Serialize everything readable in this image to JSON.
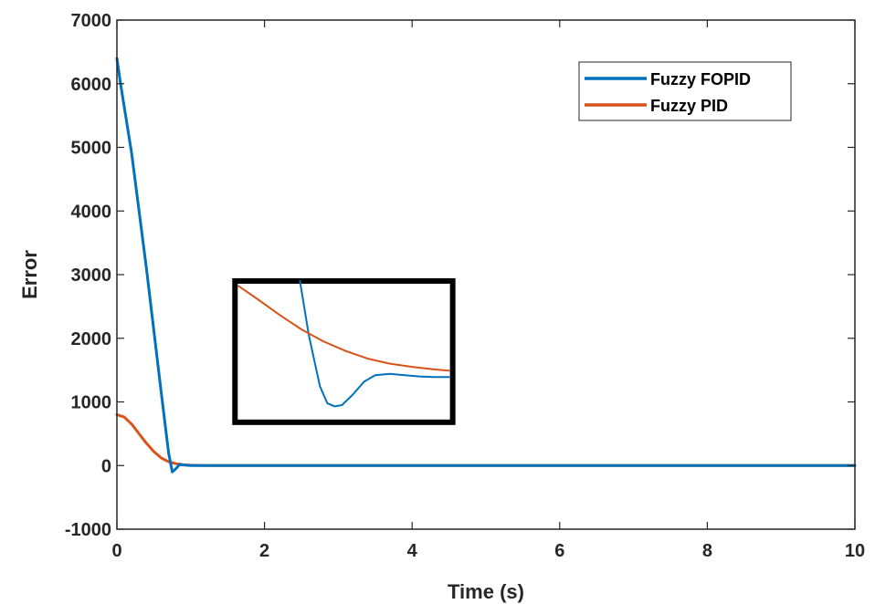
{
  "chart_data": {
    "type": "line",
    "xlabel": "Time (s)",
    "ylabel": "Error",
    "xlim": [
      0,
      10
    ],
    "ylim": [
      -1000,
      7000
    ],
    "xticks": [
      0,
      2,
      4,
      6,
      8,
      10
    ],
    "yticks": [
      -1000,
      0,
      1000,
      2000,
      3000,
      4000,
      5000,
      6000,
      7000
    ],
    "xtick_labels": [
      "0",
      "2",
      "4",
      "6",
      "8",
      "10"
    ],
    "ytick_labels": [
      "-1000",
      "0",
      "1000",
      "2000",
      "3000",
      "4000",
      "5000",
      "6000",
      "7000"
    ],
    "grid": false,
    "legend_position": "top-right",
    "series": [
      {
        "name": "Fuzzy FOPID",
        "color": "#0072BD",
        "x": [
          0,
          0.05,
          0.2,
          0.4,
          0.6,
          0.7,
          0.75,
          0.8,
          0.85,
          0.9,
          1.0,
          1.2,
          2,
          4,
          6,
          8,
          10
        ],
        "y": [
          6400,
          6000,
          4900,
          3100,
          1150,
          200,
          -100,
          -50,
          20,
          10,
          0,
          0,
          0,
          0,
          0,
          0,
          0
        ]
      },
      {
        "name": "Fuzzy PID",
        "color": "#D95319",
        "x": [
          0,
          0.1,
          0.2,
          0.3,
          0.4,
          0.5,
          0.6,
          0.7,
          0.8,
          0.9,
          1.0,
          1.2,
          2,
          4,
          6,
          8,
          10
        ],
        "y": [
          800,
          760,
          650,
          500,
          350,
          220,
          120,
          60,
          30,
          12,
          5,
          0,
          0,
          0,
          0,
          0,
          0
        ]
      }
    ],
    "annotations": [
      {
        "type": "inset-zoom-box",
        "x_range": [
          1.6,
          4.55
        ],
        "y_range": [
          680,
          2900
        ]
      }
    ],
    "inset": {
      "x_range": [
        1.6,
        4.55
      ],
      "y_range": [
        680,
        2900
      ],
      "series": [
        {
          "name": "Fuzzy FOPID",
          "x": [
            2.48,
            2.6,
            2.75,
            2.85,
            2.95,
            3.05,
            3.2,
            3.35,
            3.5,
            3.7,
            3.9,
            4.1,
            4.3,
            4.5
          ],
          "y": [
            2900,
            2050,
            1250,
            980,
            930,
            950,
            1120,
            1320,
            1420,
            1440,
            1420,
            1400,
            1390,
            1390
          ]
        },
        {
          "name": "Fuzzy PID",
          "x": [
            1.65,
            1.9,
            2.2,
            2.5,
            2.8,
            3.1,
            3.4,
            3.7,
            4.0,
            4.3,
            4.5
          ],
          "y": [
            2820,
            2620,
            2370,
            2140,
            1950,
            1800,
            1680,
            1600,
            1550,
            1510,
            1490
          ]
        }
      ]
    }
  }
}
